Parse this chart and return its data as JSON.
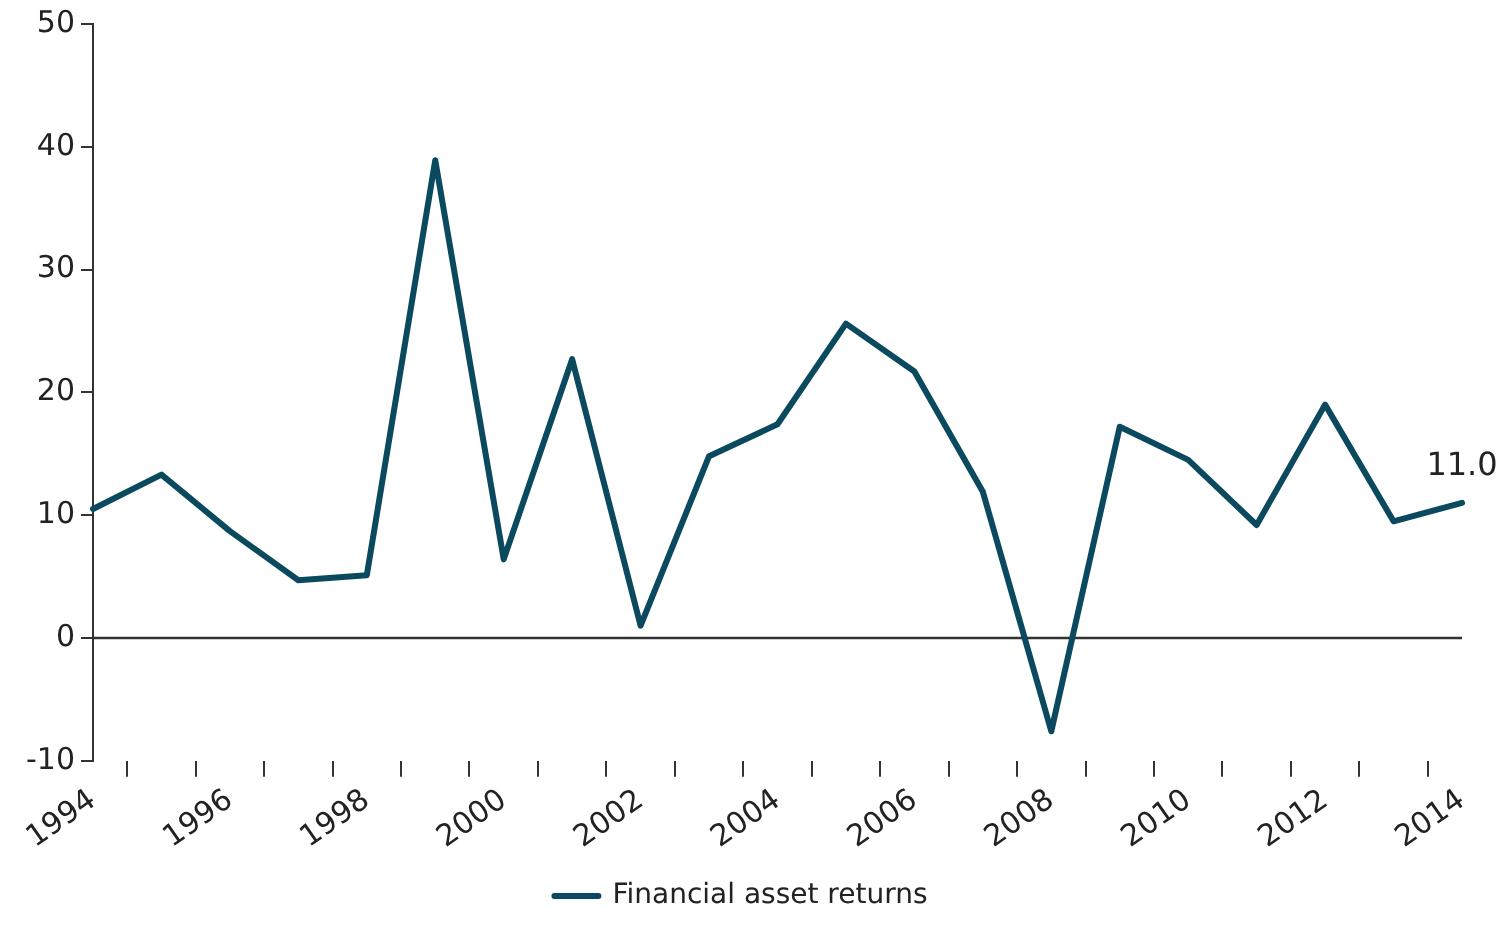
{
  "chart_data": {
    "type": "line",
    "categories": [
      "1994",
      null,
      "1996",
      null,
      "1998",
      null,
      "2000",
      null,
      "2002",
      null,
      "2004",
      null,
      "2006",
      null,
      "2008",
      null,
      "2010",
      null,
      "2012",
      null,
      "2014"
    ],
    "series": [
      {
        "name": "Financial asset returns",
        "color": "#0b4a5e",
        "values": [
          10.5,
          13.3,
          8.7,
          4.7,
          5.1,
          38.9,
          6.4,
          22.7,
          1.0,
          14.8,
          17.4,
          25.6,
          21.7,
          11.9,
          -7.6,
          17.2,
          14.5,
          9.2,
          19.0,
          9.5,
          11.0
        ],
        "value_labels": [
          null,
          null,
          null,
          null,
          null,
          null,
          null,
          null,
          null,
          null,
          null,
          null,
          null,
          null,
          null,
          null,
          null,
          null,
          null,
          null,
          "11.0"
        ]
      }
    ],
    "ylim": [
      -10,
      50
    ],
    "yticks": [
      -10,
      0,
      10,
      20,
      30,
      40,
      50
    ],
    "ref_lines": [
      {
        "axis": "y",
        "value": 0,
        "color": "#333333"
      }
    ],
    "grid": false,
    "legend": "bottom",
    "marker": "none",
    "line_style": "solid"
  }
}
